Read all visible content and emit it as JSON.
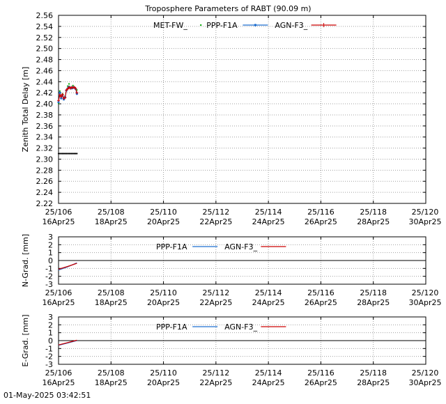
{
  "timestamp": "01-May-2025 03:42:51",
  "chart_data": [
    {
      "type": "scatter",
      "title": "Troposphere Parameters of RABT (90.09 m)",
      "ylabel": "Zenith Total Delay [m]",
      "xlabel": "",
      "xlim": [
        0,
        14
      ],
      "ylim": [
        2.22,
        2.56
      ],
      "yticks": [
        "2.56",
        "2.54",
        "2.52",
        "2.50",
        "2.48",
        "2.46",
        "2.44",
        "2.42",
        "2.40",
        "2.38",
        "2.36",
        "2.34",
        "2.32",
        "2.30",
        "2.28",
        "2.26",
        "2.24",
        "2.22"
      ],
      "xticks": [
        {
          "doy": "25/106",
          "date": "16Apr25"
        },
        {
          "doy": "25/108",
          "date": "18Apr25"
        },
        {
          "doy": "25/110",
          "date": "20Apr25"
        },
        {
          "doy": "25/112",
          "date": "22Apr25"
        },
        {
          "doy": "25/114",
          "date": "24Apr25"
        },
        {
          "doy": "25/116",
          "date": "26Apr25"
        },
        {
          "doy": "25/118",
          "date": "28Apr25"
        },
        {
          "doy": "25/120",
          "date": "30Apr25"
        }
      ],
      "grid": true,
      "legend_position": "top",
      "series": [
        {
          "name": "MET-FW_",
          "color": "#00aa00",
          "x": [
            0.0,
            0.05,
            0.1,
            0.15,
            0.2,
            0.25,
            0.3,
            0.35,
            0.4,
            0.45,
            0.5,
            0.55,
            0.6,
            0.65,
            0.7
          ],
          "y": [
            2.401,
            2.423,
            2.412,
            2.418,
            2.409,
            2.414,
            2.424,
            2.432,
            2.436,
            2.43,
            2.428,
            2.433,
            2.43,
            2.427,
            2.425
          ]
        },
        {
          "name": "PPP-F1A",
          "color": "#1f6fd0",
          "x": [
            0.0,
            0.05,
            0.1,
            0.15,
            0.2,
            0.25,
            0.3,
            0.35,
            0.4,
            0.45,
            0.5,
            0.55,
            0.6,
            0.65,
            0.7
          ],
          "y": [
            2.403,
            2.42,
            2.41,
            2.415,
            2.408,
            2.412,
            2.424,
            2.428,
            2.431,
            2.429,
            2.428,
            2.43,
            2.429,
            2.427,
            2.418
          ]
        },
        {
          "name": "AGN-F3_",
          "color": "#cc0000",
          "x": [
            0.0,
            0.05,
            0.1,
            0.15,
            0.2,
            0.25,
            0.3,
            0.35,
            0.4,
            0.45,
            0.5,
            0.55,
            0.6,
            0.65,
            0.7
          ],
          "y": [
            2.406,
            2.416,
            2.413,
            2.417,
            2.41,
            2.411,
            2.425,
            2.427,
            2.43,
            2.428,
            2.43,
            2.429,
            2.43,
            2.428,
            2.42
          ]
        },
        {
          "name": "",
          "color": "#000000",
          "x": [
            0.0,
            0.05,
            0.1,
            0.15,
            0.2,
            0.25,
            0.3,
            0.35,
            0.4,
            0.45,
            0.5,
            0.55,
            0.6,
            0.65,
            0.7
          ],
          "y": [
            2.31,
            2.31,
            2.31,
            2.31,
            2.31,
            2.31,
            2.31,
            2.31,
            2.31,
            2.31,
            2.31,
            2.31,
            2.31,
            2.31,
            2.31
          ]
        }
      ]
    },
    {
      "type": "line",
      "title": "",
      "ylabel": "N-Grad. [mm]",
      "xlabel": "",
      "xlim": [
        0,
        14
      ],
      "ylim": [
        -3,
        3
      ],
      "yticks": [
        "3",
        "2",
        "1",
        "0",
        "-1",
        "-2",
        "-3"
      ],
      "grid": true,
      "legend_position": "top",
      "series": [
        {
          "name": "PPP-F1A",
          "color": "#1f6fd0",
          "x": [
            0.0,
            0.35,
            0.7
          ],
          "y": [
            -1.2,
            -0.8,
            -0.3
          ]
        },
        {
          "name": "AGN-F3_",
          "color": "#cc0000",
          "x": [
            0.0,
            0.35,
            0.7
          ],
          "y": [
            -1.1,
            -0.75,
            -0.35
          ]
        }
      ]
    },
    {
      "type": "line",
      "title": "",
      "ylabel": "E-Grad. [mm]",
      "xlabel": "",
      "xlim": [
        0,
        14
      ],
      "ylim": [
        -3,
        3
      ],
      "yticks": [
        "3",
        "2",
        "1",
        "0",
        "-1",
        "-2",
        "-3"
      ],
      "grid": true,
      "legend_position": "top",
      "series": [
        {
          "name": "PPP-F1A",
          "color": "#1f6fd0",
          "x": [
            0.0,
            0.35,
            0.7
          ],
          "y": [
            -0.6,
            -0.3,
            0.0
          ]
        },
        {
          "name": "AGN-F3_",
          "color": "#cc0000",
          "x": [
            0.0,
            0.35,
            0.7
          ],
          "y": [
            -0.55,
            -0.25,
            0.05
          ]
        }
      ]
    }
  ]
}
